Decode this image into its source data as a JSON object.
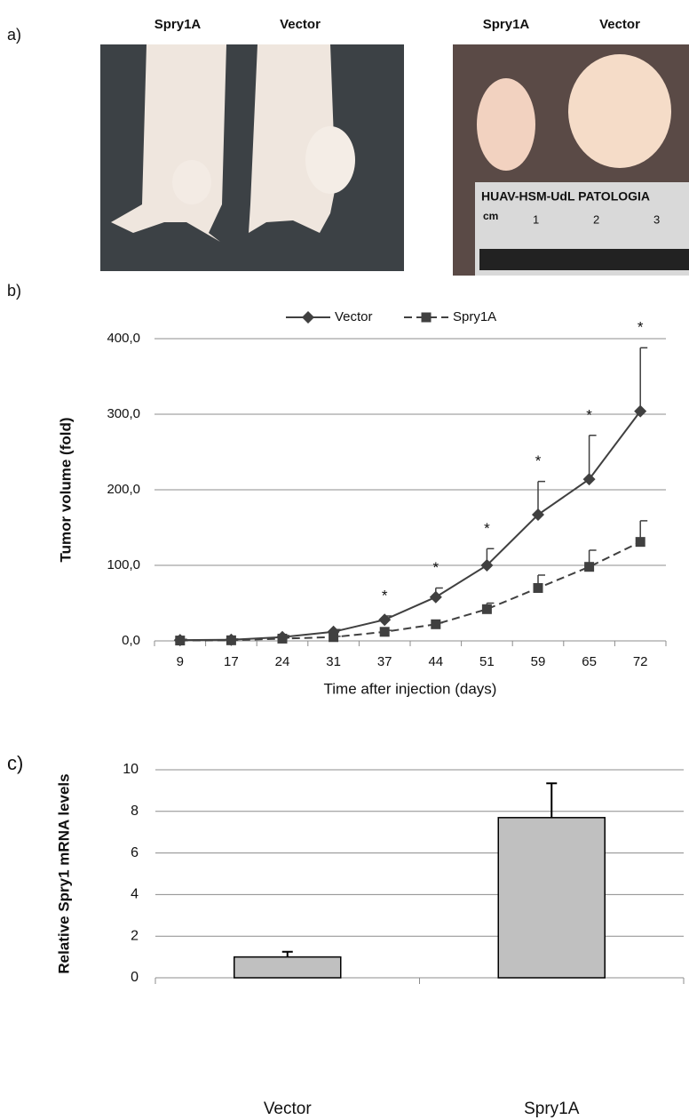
{
  "panels": [
    "a)",
    "b)",
    "c)"
  ],
  "photos": {
    "left_labels": [
      "Spry1A",
      "Vector"
    ],
    "right_labels": [
      "Spry1A",
      "Vector"
    ],
    "ruler_title": "HUAV-HSM-UdL PATOLOGIA",
    "ruler_unit": "cm",
    "ruler_marks": [
      "1",
      "2",
      "3"
    ]
  },
  "chart_data": [
    {
      "type": "line",
      "ylabel": "Tumor volume (fold)",
      "xlabel": "Time after injection (days)",
      "categories": [
        "9",
        "17",
        "24",
        "31",
        "37",
        "44",
        "51",
        "59",
        "65",
        "72"
      ],
      "ylim": [
        0,
        400
      ],
      "yticks": [
        {
          "value": 0,
          "label": "0,0"
        },
        {
          "value": 100,
          "label": "100,0"
        },
        {
          "value": 200,
          "label": "200,0"
        },
        {
          "value": 300,
          "label": "300,0"
        },
        {
          "value": 400,
          "label": "400,0"
        }
      ],
      "grid": true,
      "legend": "top",
      "series": [
        {
          "name": "Vector",
          "color": "#404040",
          "marker": "diamond",
          "line_style": "solid",
          "values": [
            1,
            1.5,
            5,
            12,
            28,
            58,
            100,
            167,
            214,
            304
          ],
          "errors": [
            1,
            1,
            2,
            3,
            5,
            12,
            22,
            44,
            58,
            84
          ]
        },
        {
          "name": "Spry1A",
          "color": "#404040",
          "marker": "square",
          "line_style": "dashed",
          "values": [
            0.5,
            0.8,
            3,
            5,
            12,
            22,
            42,
            70,
            98,
            131
          ],
          "errors": [
            0.5,
            0.5,
            1,
            1,
            2,
            2,
            8,
            17,
            22,
            28
          ]
        }
      ],
      "significance": [
        null,
        null,
        null,
        null,
        "*",
        "*",
        "*",
        "*",
        "*",
        "*"
      ]
    },
    {
      "type": "bar",
      "ylabel": "Relative Spry1 mRNA levels",
      "categories": [
        "Vector",
        "Spry1A"
      ],
      "values": [
        1.0,
        7.7
      ],
      "errors": [
        0.25,
        1.65
      ],
      "color": "#c0c0c0",
      "ylim": [
        0,
        10
      ],
      "yticks": [
        0,
        2,
        4,
        6,
        8,
        10
      ],
      "grid": true
    }
  ]
}
